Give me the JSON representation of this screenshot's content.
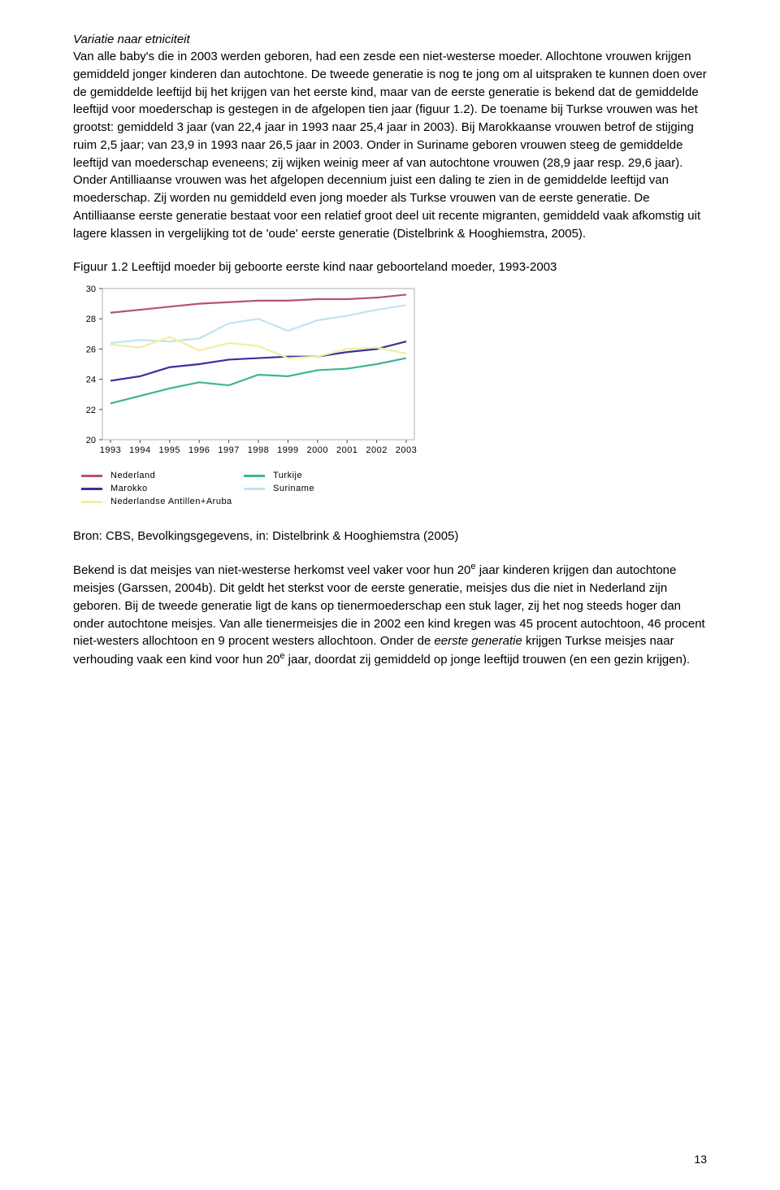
{
  "heading": "Variatie naar etniciteit",
  "para1": "Van alle baby's die in 2003 werden geboren, had een zesde een niet-westerse moeder. Allochtone vrouwen krijgen gemiddeld jonger kinderen dan autochtone. De tweede generatie is nog te jong om al uitspraken te kunnen doen over de gemiddelde leeftijd bij het krijgen van het eerste kind, maar van de eerste generatie is bekend dat de gemiddelde leeftijd voor moederschap is gestegen in de afgelopen tien jaar (figuur 1.2). De toename bij Turkse vrouwen was het grootst: gemiddeld 3 jaar (van 22,4 jaar in 1993 naar 25,4 jaar in 2003). Bij Marokkaanse vrouwen betrof de stijging ruim 2,5 jaar; van 23,9 in 1993 naar 26,5 jaar in 2003. Onder in Suriname geboren vrouwen steeg de gemiddelde leeftijd van moederschap eveneens; zij wijken weinig meer af van autochtone vrouwen (28,9 jaar resp. 29,6 jaar). Onder Antilliaanse vrouwen was het afgelopen decennium juist een daling te zien in de gemiddelde leeftijd van moederschap. Zij worden nu gemiddeld even jong moeder als Turkse vrouwen van de eerste generatie. De Antilliaanse eerste generatie bestaat voor een relatief groot deel uit recente migranten, gemiddeld vaak afkomstig uit lagere klassen in vergelijking tot de 'oude' eerste generatie (Distelbrink & Hooghiemstra, 2005).",
  "figure_caption": "Figuur 1.2  Leeftijd moeder bij geboorte eerste kind naar geboorteland moeder, 1993-2003",
  "chart": {
    "type": "line",
    "ylim": [
      20,
      30
    ],
    "yticks": [
      20,
      22,
      24,
      26,
      28,
      30
    ],
    "xticks": [
      "1993",
      "1994",
      "1995",
      "1996",
      "1997",
      "1998",
      "1999",
      "2000",
      "2001",
      "2002",
      "2003"
    ],
    "background_color": "#ffffff",
    "plot_border_color": "#b0b0b0",
    "tick_color": "#4a4a4a",
    "label_fontsize": 11,
    "series": [
      {
        "name": "Nederland",
        "color": "#b8546b",
        "values": [
          28.4,
          28.6,
          28.8,
          29.0,
          29.1,
          29.2,
          29.2,
          29.3,
          29.3,
          29.4,
          29.6
        ]
      },
      {
        "name": "Turkije",
        "color": "#3fb594",
        "values": [
          22.4,
          22.9,
          23.4,
          23.8,
          23.6,
          24.3,
          24.2,
          24.6,
          24.7,
          25.0,
          25.4
        ]
      },
      {
        "name": "Marokko",
        "color": "#3b2f9f",
        "values": [
          23.9,
          24.2,
          24.8,
          25.0,
          25.3,
          25.4,
          25.5,
          25.5,
          25.8,
          26.0,
          26.5
        ]
      },
      {
        "name": "Suriname",
        "color": "#bfe4ef",
        "values": [
          26.4,
          26.6,
          26.5,
          26.7,
          27.7,
          28.0,
          27.2,
          27.9,
          28.2,
          28.6,
          28.9
        ]
      },
      {
        "name": "Nederlandse Antillen+Aruba",
        "color": "#f3eea0",
        "values": [
          26.3,
          26.1,
          26.8,
          25.9,
          26.4,
          26.2,
          25.4,
          25.5,
          26.0,
          26.1,
          25.7
        ]
      }
    ]
  },
  "legend": {
    "col1": [
      "Nederland",
      "Marokko",
      "Nederlandse Antillen+Aruba"
    ],
    "col2": [
      "Turkije",
      "Suriname"
    ],
    "colors": {
      "Nederland": "#b8546b",
      "Marokko": "#3b2f9f",
      "Nederlandse Antillen+Aruba": "#f3eea0",
      "Turkije": "#3fb594",
      "Suriname": "#bfe4ef"
    }
  },
  "source": "Bron: CBS, Bevolkingsgegevens, in: Distelbrink & Hooghiemstra (2005)",
  "para2_pre": "Bekend is dat meisjes van niet-westerse herkomst veel vaker voor hun 20",
  "para2_sup1": "e",
  "para2_mid": " jaar kinderen krijgen dan autochtone meisjes (Garssen, 2004b). Dit geldt het sterkst voor de eerste generatie, meisjes dus die niet in Nederland zijn geboren. Bij de tweede generatie ligt de kans op tienermoederschap een stuk lager, zij het nog steeds hoger dan onder autochtone meisjes. Van alle tienermeisjes die in 2002 een kind kregen was 45 procent autochtoon, 46 procent niet-westers allochtoon en 9 procent westers allochtoon. Onder de ",
  "para2_italic": "eerste generatie",
  "para2_post": " krijgen Turkse meisjes naar verhouding vaak een kind voor hun 20",
  "para2_sup2": "e",
  "para2_end": " jaar, doordat zij gemiddeld op jonge leeftijd trouwen (en een gezin krijgen).",
  "page_number": "13"
}
